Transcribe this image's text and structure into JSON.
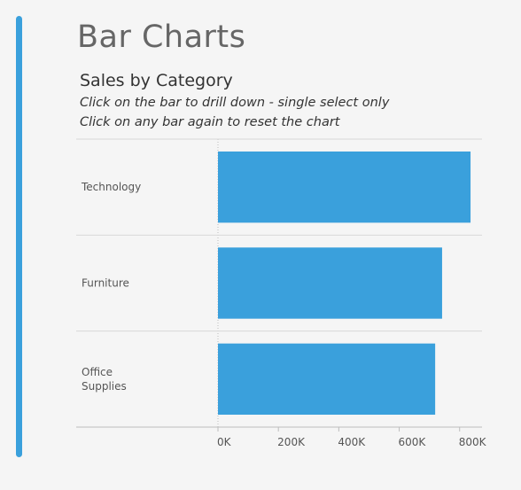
{
  "page": {
    "title": "Bar Charts",
    "accent_color": "#3aa0dc"
  },
  "chart_data": {
    "type": "bar",
    "orientation": "horizontal",
    "title": "Sales by Category",
    "subtitle_lines": [
      "Click on the bar to drill down - single select only",
      "Click on any bar  again to reset the chart"
    ],
    "categories": [
      "Technology",
      "Furniture",
      "Office Supplies"
    ],
    "category_label_lines": [
      [
        "Technology"
      ],
      [
        "Furniture"
      ],
      [
        "Office",
        "Supplies"
      ]
    ],
    "values": [
      836154,
      741999,
      719047
    ],
    "xlim": [
      0,
      880000
    ],
    "ticks": [
      0,
      200000,
      400000,
      600000,
      800000
    ],
    "tick_labels": [
      "0K",
      "200K",
      "400K",
      "600K",
      "800K"
    ],
    "xlabel": "",
    "ylabel": "",
    "bar_color": "#3aa0dc",
    "grid": false,
    "legend": "none"
  }
}
